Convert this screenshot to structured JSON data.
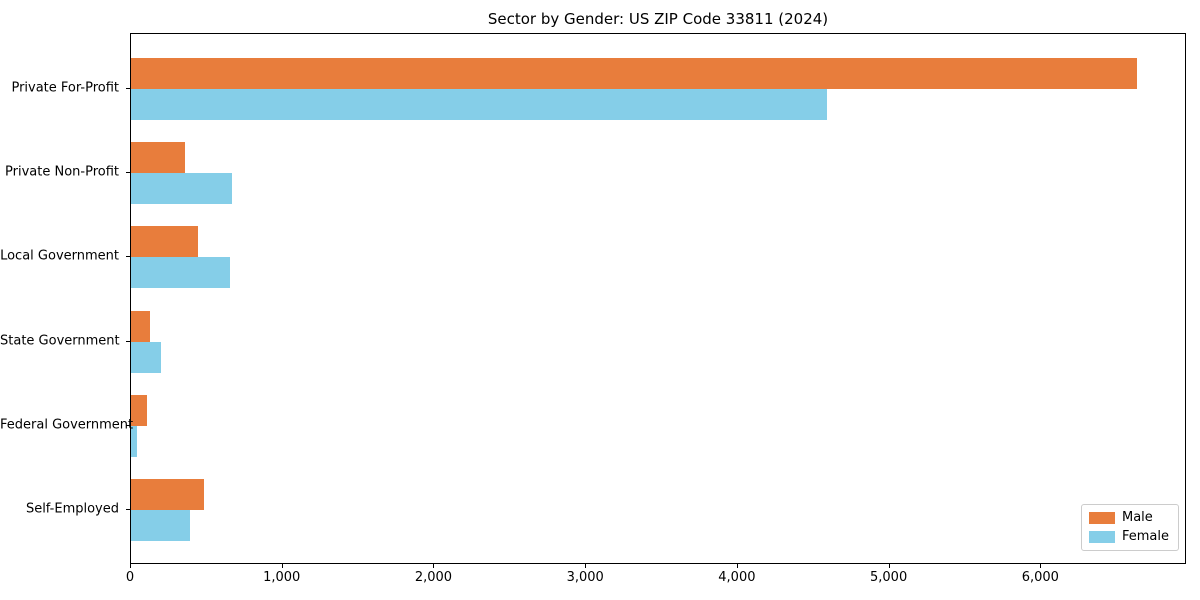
{
  "chart_data": {
    "type": "bar",
    "orientation": "horizontal",
    "title": "Sector by Gender: US ZIP Code 33811 (2024)",
    "categories": [
      "Private For-Profit",
      "Private Non-Profit",
      "Local Government",
      "State Government",
      "Federal Government",
      "Self-Employed"
    ],
    "series": [
      {
        "name": "Male",
        "color": "#e87d3c",
        "values": [
          6630,
          355,
          440,
          122,
          107,
          480
        ]
      },
      {
        "name": "Female",
        "color": "#85cee8",
        "values": [
          4590,
          665,
          650,
          201,
          40,
          388
        ]
      }
    ],
    "xlabel": "",
    "ylabel": "",
    "xlim": [
      0,
      6960
    ],
    "xticks": {
      "values": [
        0,
        1000,
        2000,
        3000,
        4000,
        5000,
        6000
      ],
      "labels": [
        "0",
        "1,000",
        "2,000",
        "3,000",
        "4,000",
        "5,000",
        "6,000"
      ]
    },
    "grid": false,
    "background": "#ffffff",
    "legend": {
      "position": "lower right"
    }
  }
}
